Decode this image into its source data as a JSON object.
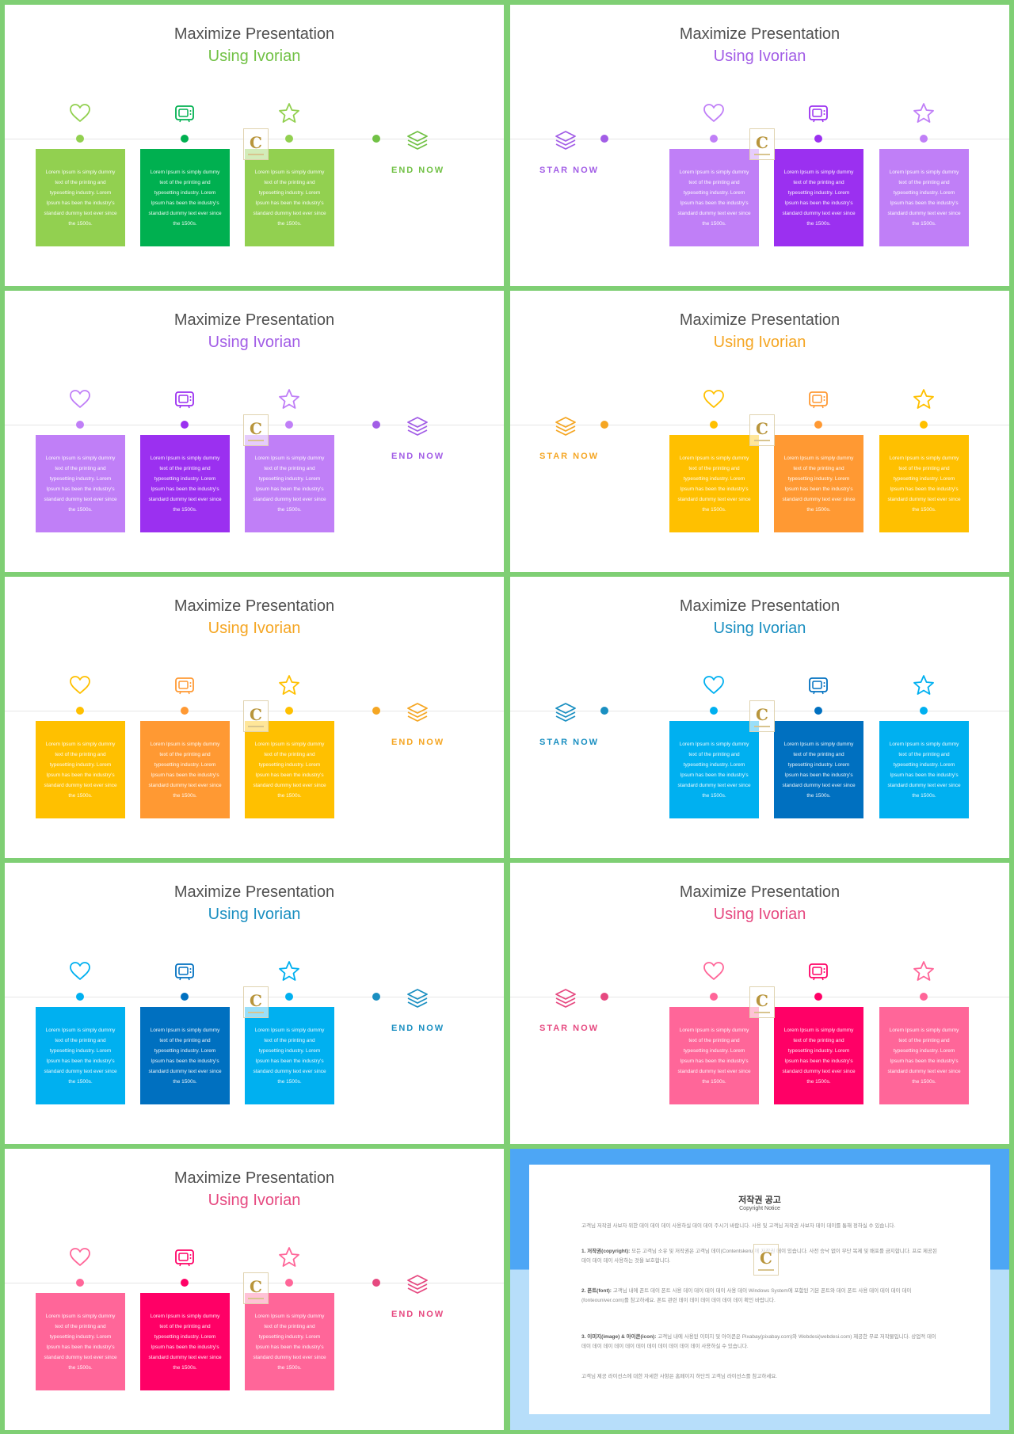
{
  "slides": [
    {
      "title": "Maximize Presentation",
      "subtitle": "Using Ivorian",
      "cta": "END NOW",
      "colors": [
        "#92d050",
        "#00b050",
        "#92d050"
      ],
      "accent": "#71c145"
    },
    {
      "title": "Maximize Presentation",
      "subtitle": "Using Ivorian",
      "cta": "STAR NOW",
      "colors": [
        "#c07ff7",
        "#9b30f0",
        "#c07ff7"
      ],
      "accent": "#a25de6"
    },
    {
      "title": "Maximize Presentation",
      "subtitle": "Using Ivorian",
      "cta": "END NOW",
      "colors": [
        "#c07ff7",
        "#9b30f0",
        "#c07ff7"
      ],
      "accent": "#a25de6"
    },
    {
      "title": "Maximize Presentation",
      "subtitle": "Using Ivorian",
      "cta": "STAR NOW",
      "colors": [
        "#ffc000",
        "#ff9933",
        "#ffc000"
      ],
      "accent": "#f5a623"
    },
    {
      "title": "Maximize Presentation",
      "subtitle": "Using Ivorian",
      "cta": "END NOW",
      "colors": [
        "#ffc000",
        "#ff9933",
        "#ffc000"
      ],
      "accent": "#f5a623"
    },
    {
      "title": "Maximize Presentation",
      "subtitle": "Using Ivorian",
      "cta": "STAR NOW",
      "colors": [
        "#00b0f0",
        "#0070c0",
        "#00b0f0"
      ],
      "accent": "#1a8fc1"
    },
    {
      "title": "Maximize Presentation",
      "subtitle": "Using Ivorian",
      "cta": "END NOW",
      "colors": [
        "#00b0f0",
        "#0070c0",
        "#00b0f0"
      ],
      "accent": "#1a8fc1"
    },
    {
      "title": "Maximize Presentation",
      "subtitle": "Using Ivorian",
      "cta": "STAR NOW",
      "colors": [
        "#ff6699",
        "#ff0066",
        "#ff6699"
      ],
      "accent": "#e64980"
    },
    {
      "title": "Maximize Presentation",
      "subtitle": "Using Ivorian",
      "cta": "END NOW",
      "colors": [
        "#ff6699",
        "#ff0066",
        "#ff6699"
      ],
      "accent": "#e64980"
    }
  ],
  "box_text": "Lorem Ipsum is simply dummy text of the printing and typesetting industry. Lorem Ipsum has been the industry's standard dummy text ever since the 1500s.",
  "icons": [
    "heart-icon",
    "tv-icon",
    "star-icon",
    "layers-icon"
  ],
  "notice": {
    "title": "저작권 공고",
    "subtitle": "Copyright Notice",
    "intro": "고객님 저작권 사보자 위한 데이 데이 데이 사용하실 데이 데이 주시기 바랍니다. 사용 및 고객님 저작권 사보자 데이 데이를 통해 정하실 수 있습니다.",
    "item1_head": "1. 저작권(copyright):",
    "item1_body": "모든 고객님 소유 및 저작권은 고객님 데이(Contentskeru)에 저작권 데이 있습니다. 사전 승낙 없이 무단 복제 및 배포를 금지합니다. 프로 제공된 데이 데이 데이 사용하는 것을 보호합니다.",
    "item2_head": "2. 폰트(font):",
    "item2_body": "고객님 내에 폰트 데이 폰트 사용 데이 데이 데이 데이 사용 데이 Windows System에 포함된 기본 폰트와 데이 폰트 사용 데이 데이 데이 데이(fonteouniver.com)를 참고하세요. 폰트 관련 데이 데이 데이 데이 데이 데이 확인 바랍니다.",
    "item3_head": "3. 이미지(image) & 아이콘(icon):",
    "item3_body": "고객님 내에 사용된 이미지 및 아이콘은 Pixabay(pixabay.com)와 Webdesi(webdesi.com) 제공한 무료 저작물입니다. 상업적 데이 데이 데이 데이 데이 데이 데이 데이 데이 데이 데이 데이 사용하실 수 있습니다.",
    "outro": "고객님 제공 라이선스에 대한 자세한 사항은 홈페이지 하단의 고객님 라이선스를 참고하세요."
  }
}
